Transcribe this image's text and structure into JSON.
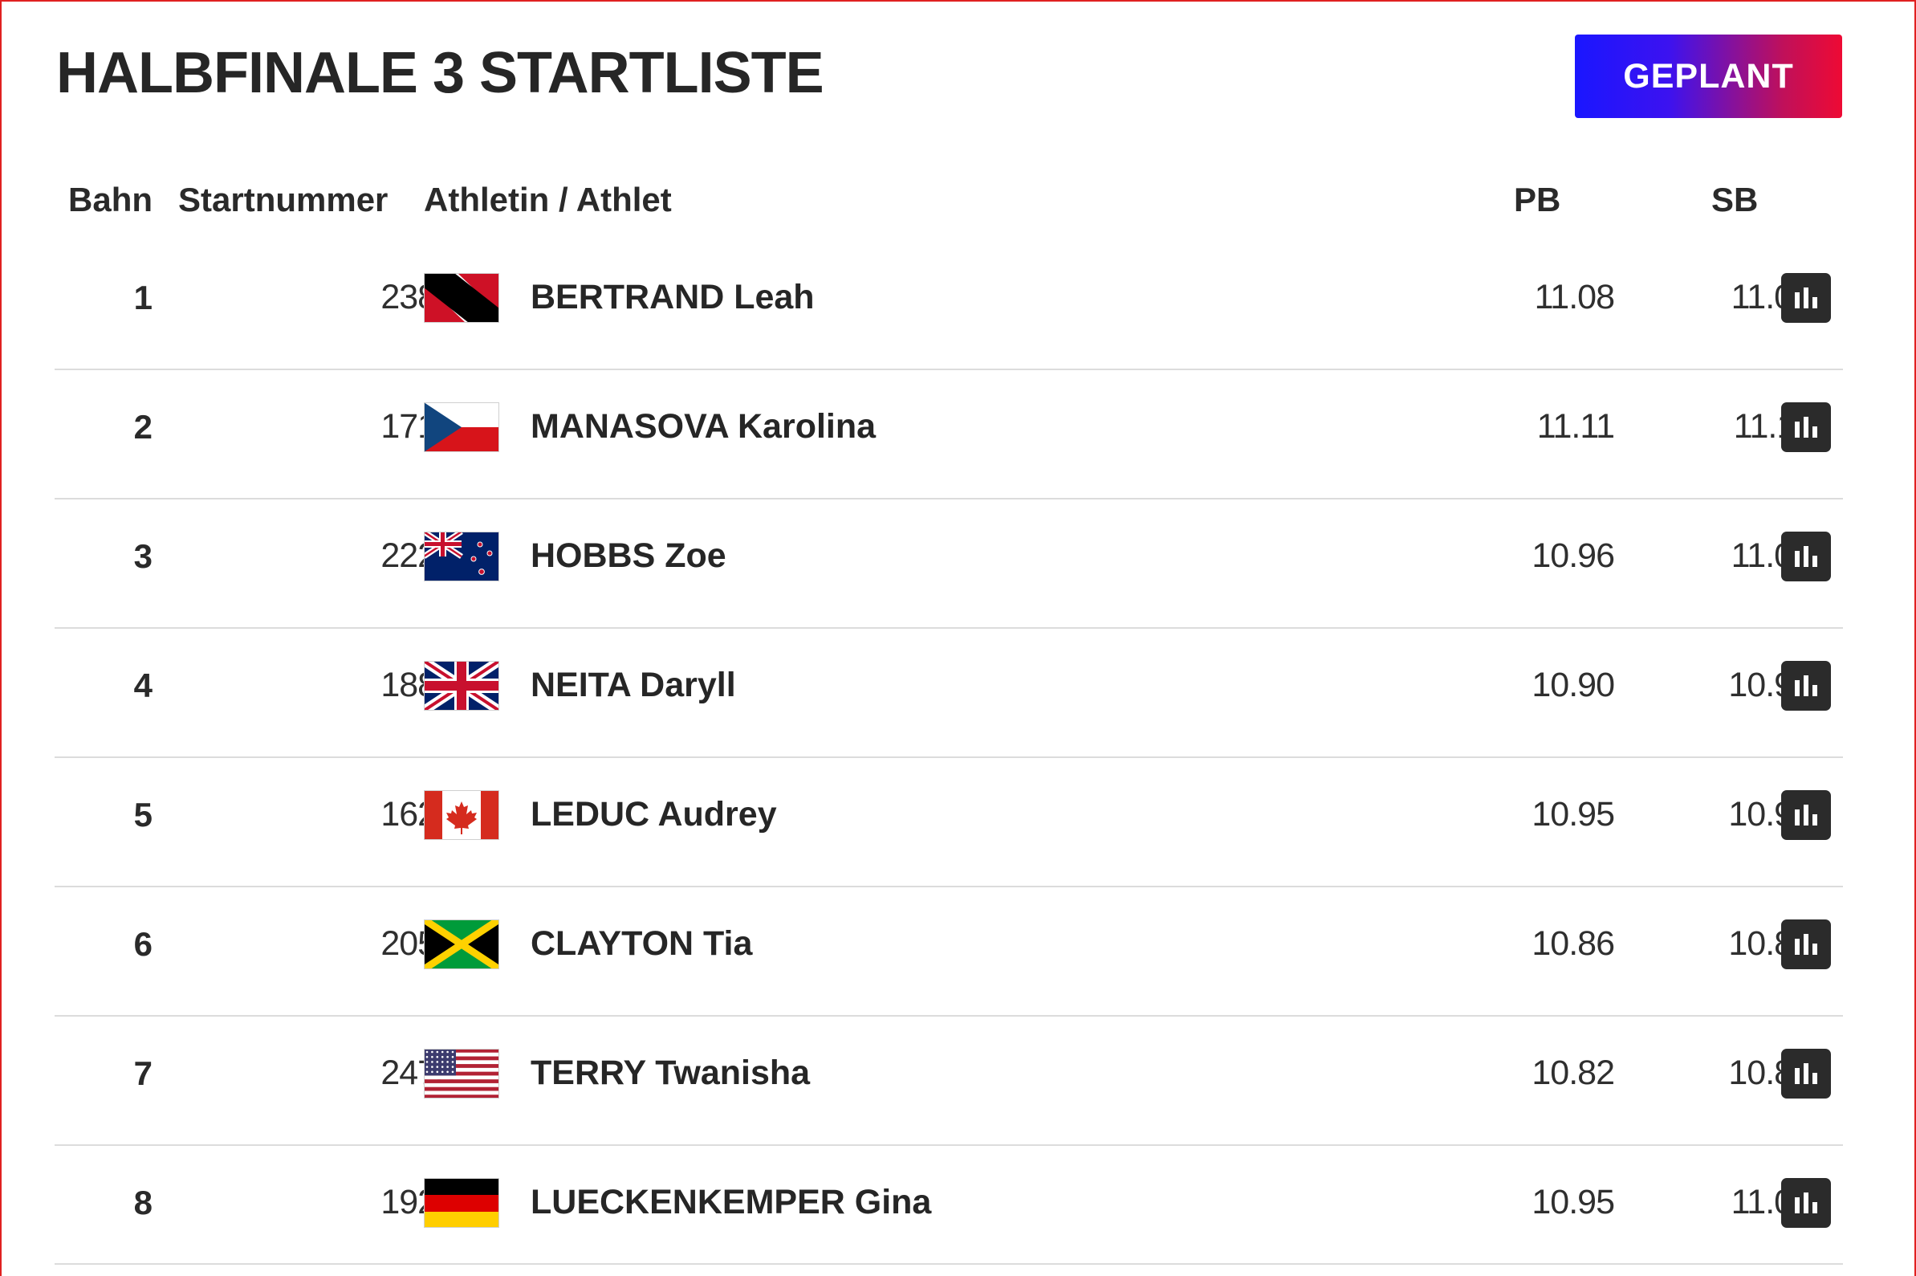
{
  "header": {
    "title": "HALBFINALE 3 STARTLISTE",
    "status_label": "GEPLANT",
    "status_gradient": [
      "#1a16ff",
      "#ee0a34"
    ]
  },
  "columns": {
    "lane": "Bahn",
    "bib": "Startnummer",
    "athlete": "Athletin / Athlet",
    "pb": "PB",
    "sb": "SB"
  },
  "rows": [
    {
      "lane": "1",
      "bib": "2381",
      "flag": "flag-trinidad-and-tobago",
      "name": "BERTRAND Leah",
      "pb": "11.08",
      "sb": "11.09"
    },
    {
      "lane": "2",
      "bib": "1717",
      "flag": "flag-czech-republic",
      "name": "MANASOVA Karolina",
      "pb": "11.11",
      "sb": "11.11"
    },
    {
      "lane": "3",
      "bib": "2226",
      "flag": "flag-new-zealand",
      "name": "HOBBS Zoe",
      "pb": "10.96",
      "sb": "11.08"
    },
    {
      "lane": "4",
      "bib": "1883",
      "flag": "flag-great-britain",
      "name": "NEITA Daryll",
      "pb": "10.90",
      "sb": "10.92"
    },
    {
      "lane": "5",
      "bib": "1629",
      "flag": "flag-canada",
      "name": "LEDUC Audrey",
      "pb": "10.95",
      "sb": "10.95"
    },
    {
      "lane": "6",
      "bib": "2051",
      "flag": "flag-jamaica",
      "name": "CLAYTON Tia",
      "pb": "10.86",
      "sb": "10.86"
    },
    {
      "lane": "7",
      "bib": "2475",
      "flag": "flag-united-states",
      "name": "TERRY Twanisha",
      "pb": "10.82",
      "sb": "10.89"
    },
    {
      "lane": "8",
      "bib": "1925",
      "flag": "flag-germany",
      "name": "LUECKENKEMPER Gina",
      "pb": "10.95",
      "sb": "11.04"
    }
  ],
  "icons": {
    "stats": "bar-chart-icon"
  }
}
